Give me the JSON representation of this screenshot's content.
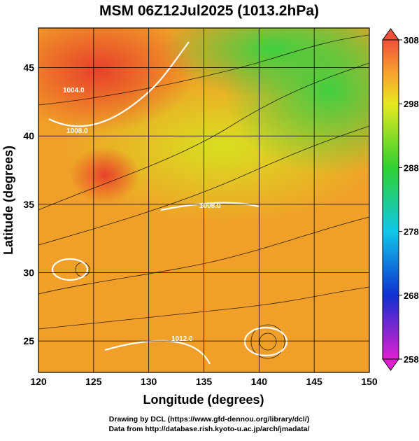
{
  "title": "MSM 06Z12Jul2025 (1013.2hPa)",
  "map": {
    "xlabel": "Longitude (degrees)",
    "ylabel": "Latitude  (degrees)",
    "xlim": [
      120,
      150
    ],
    "ylim": [
      22.7,
      47.9
    ],
    "xticks": [
      120,
      125,
      130,
      135,
      140,
      145,
      150
    ],
    "yticks": [
      25,
      30,
      35,
      40,
      45
    ],
    "grid": true,
    "contour_labels": [
      "1004.0",
      "1008.0",
      "1008.0",
      "1012.0"
    ]
  },
  "colorbar": {
    "lim": [
      258,
      308
    ],
    "ticks": [
      258,
      268,
      278,
      288,
      298,
      308
    ]
  },
  "credits": [
    "Drawing by DCL (https://www.gfd-dennou.org/library/dcl/)",
    "Data from http://database.rish.kyoto-u.ac.jp/arch/jmadata/"
  ]
}
